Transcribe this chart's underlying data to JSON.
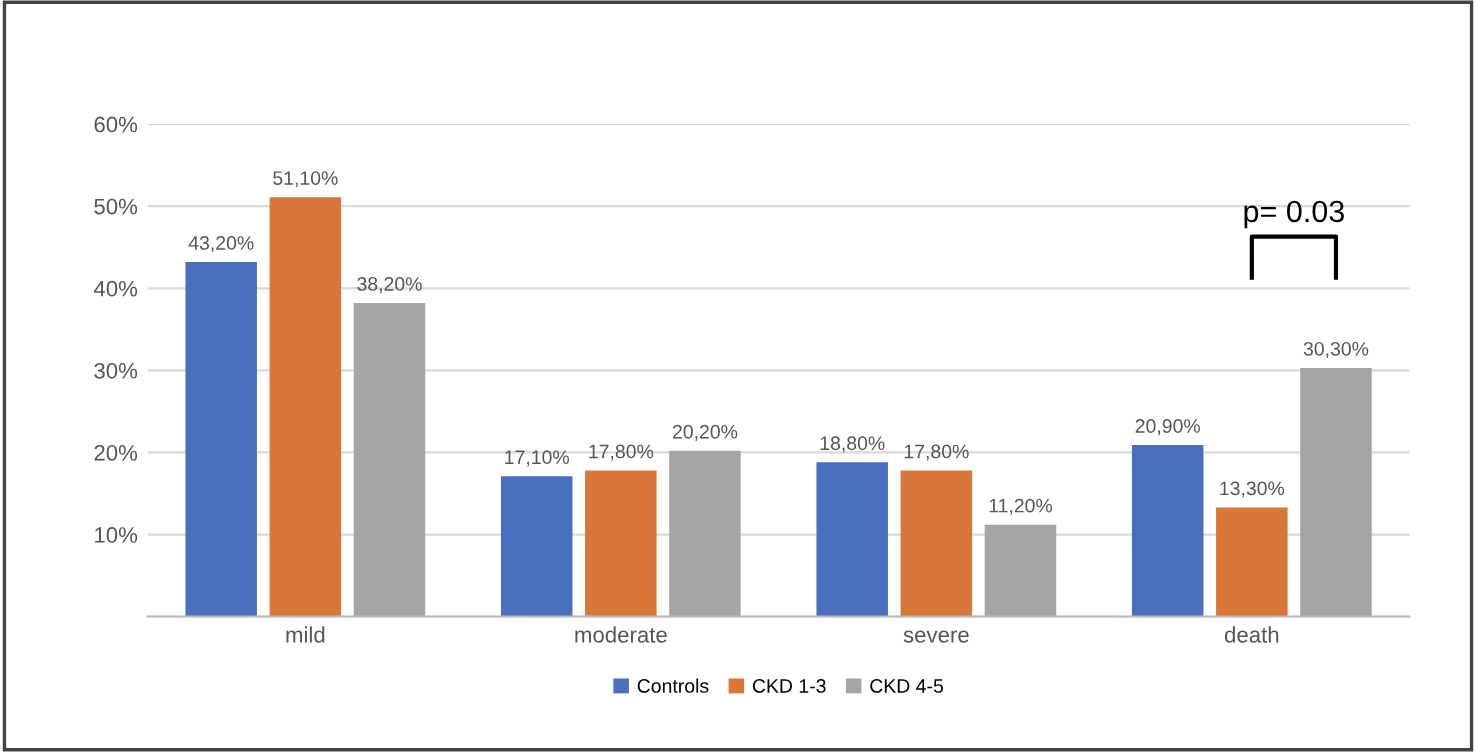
{
  "chart_data": {
    "type": "bar",
    "categories": [
      "mild",
      "moderate",
      "severe",
      "death"
    ],
    "series": [
      {
        "name": "Controls",
        "color": "#4a6fbf",
        "values": [
          43.2,
          17.1,
          18.8,
          20.9
        ],
        "value_labels": [
          "43,20%",
          "17,10%",
          "18,80%",
          "20,90%"
        ]
      },
      {
        "name": "CKD 1-3",
        "color": "#d9773a",
        "values": [
          51.1,
          17.8,
          17.8,
          13.3
        ],
        "value_labels": [
          "51,10%",
          "17,80%",
          "17,80%",
          "13,30%"
        ]
      },
      {
        "name": "CKD 4-5",
        "color": "#a5a5a5",
        "values": [
          38.2,
          20.2,
          11.2,
          30.3
        ],
        "value_labels": [
          "38,20%",
          "20,20%",
          "11,20%",
          "30,30%"
        ]
      }
    ],
    "ylim": [
      0,
      60
    ],
    "yticks": [
      {
        "value": 0,
        "label": null
      },
      {
        "value": 10,
        "label": "10%"
      },
      {
        "value": 20,
        "label": "20%"
      },
      {
        "value": 30,
        "label": "30%"
      },
      {
        "value": 40,
        "label": "40%"
      },
      {
        "value": 50,
        "label": "50%"
      },
      {
        "value": 60,
        "label": "60%"
      }
    ],
    "grid": "y",
    "legend": "bottom",
    "annotations": [
      "p= 0.03"
    ]
  }
}
